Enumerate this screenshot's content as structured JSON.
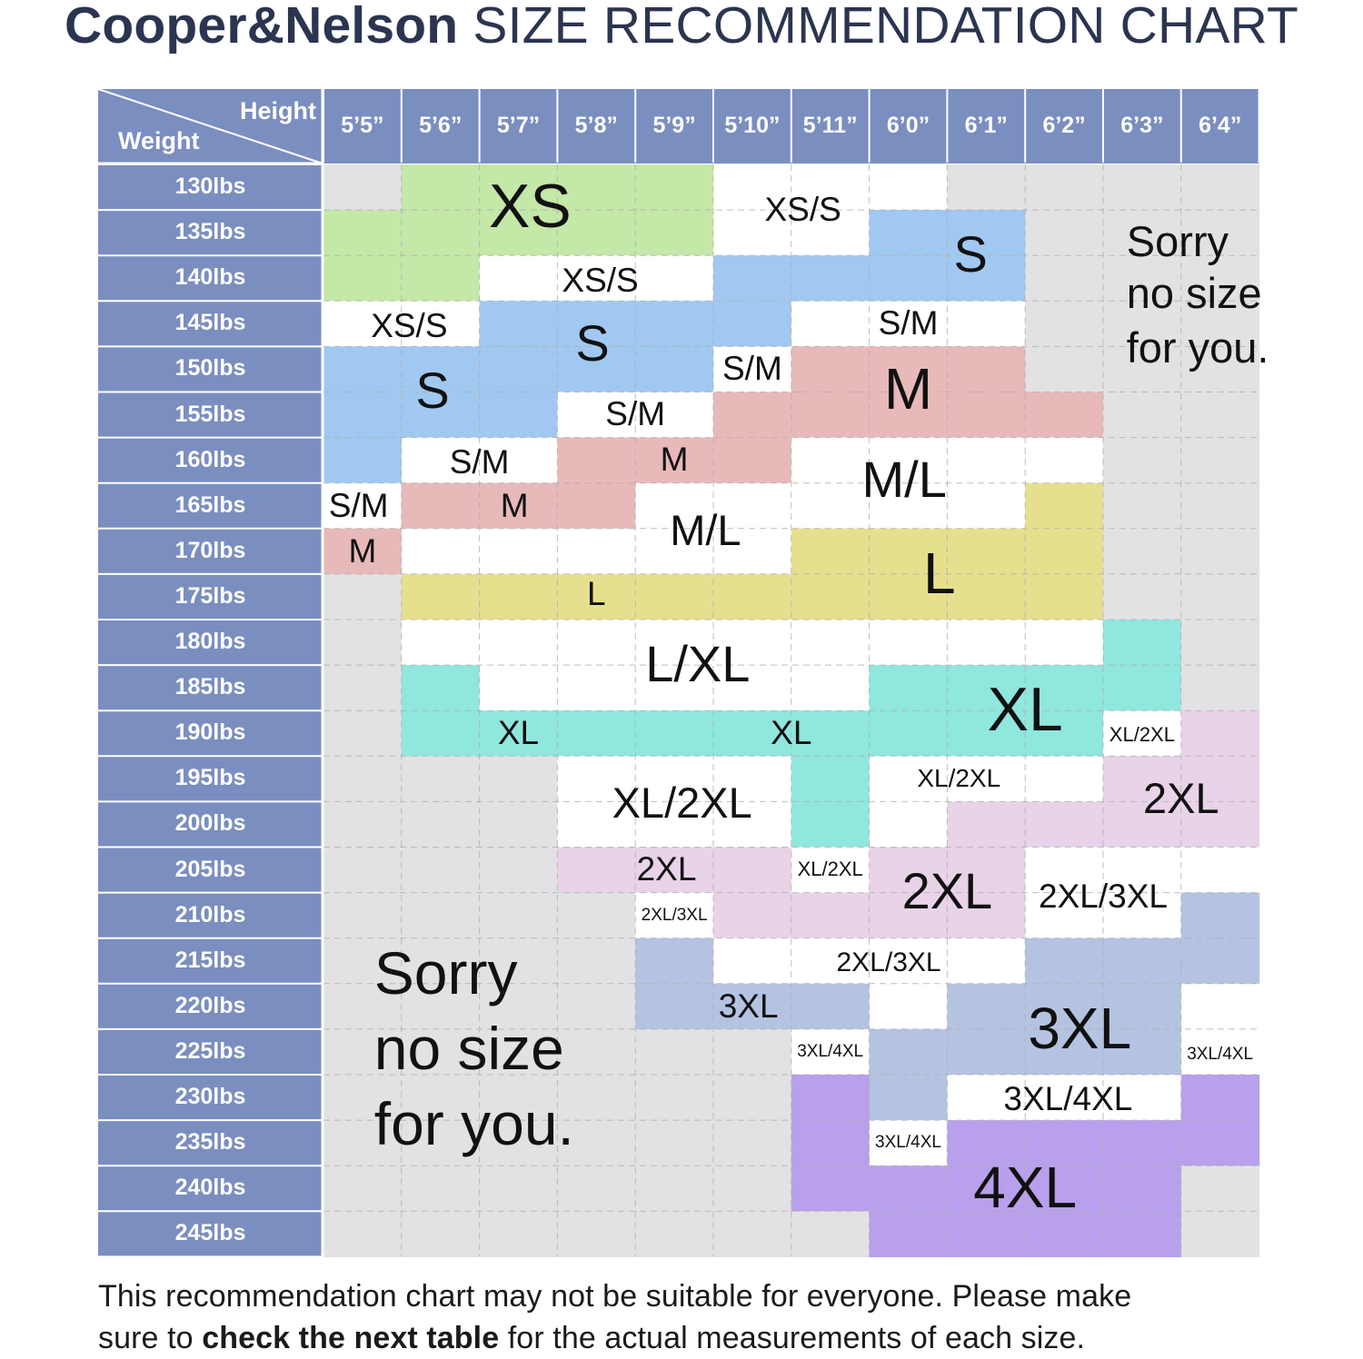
{
  "title": {
    "brand": "Cooper&Nelson",
    "text": "SIZE RECOMMENDATION CHART"
  },
  "footnote": {
    "line1": "This recommendation chart may not be suitable for everyone. Please make",
    "prefix": "sure to ",
    "bold": "check the next table",
    "suffix": " for the actual measurements of each size."
  },
  "chart_data": {
    "type": "table",
    "corner": {
      "column_label": "Height",
      "row_label": "Weight"
    },
    "columns": [
      "5’5”",
      "5’6”",
      "5’7”",
      "5’8”",
      "5’9”",
      "5’10”",
      "5’11”",
      "6’0”",
      "6’1”",
      "6’2”",
      "6’3”",
      "6’4”"
    ],
    "rows": [
      "130lbs",
      "135lbs",
      "140lbs",
      "145lbs",
      "150lbs",
      "155lbs",
      "160lbs",
      "165lbs",
      "170lbs",
      "175lbs",
      "180lbs",
      "185lbs",
      "190lbs",
      "195lbs",
      "200lbs",
      "205lbs",
      "210lbs",
      "215lbs",
      "220lbs",
      "225lbs",
      "230lbs",
      "235lbs",
      "240lbs",
      "245lbs"
    ],
    "colors": {
      "header": "#7b8ec0",
      "no_size": "#e2e2e4",
      "combo": "#ffffff",
      "XS": "#c3e8a7",
      "S": "#a1c8f1",
      "M": "#e8b9b9",
      "L": "#e6e08e",
      "XL": "#8fe7dd",
      "2XL": "#e8d3e8",
      "3XL": "#b5c3e2",
      "4XL": "#b8a0ec"
    },
    "grid": [
      [
        "none",
        "XS",
        "XS",
        "XS",
        "XS",
        "XS/S",
        "XS/S",
        "XS/S",
        "none",
        "none",
        "none",
        "none"
      ],
      [
        "XS",
        "XS",
        "XS",
        "XS",
        "XS",
        "XS/S",
        "XS/S",
        "S",
        "S",
        "none",
        "none",
        "none"
      ],
      [
        "XS",
        "XS",
        "XS/S",
        "XS/S",
        "XS/S",
        "S",
        "S",
        "S",
        "S",
        "none",
        "none",
        "none"
      ],
      [
        "XS/S",
        "XS/S",
        "S",
        "S",
        "S",
        "S",
        "S/M",
        "S/M",
        "S/M",
        "none",
        "none",
        "none"
      ],
      [
        "S",
        "S",
        "S",
        "S",
        "S",
        "S/M",
        "M",
        "M",
        "M",
        "none",
        "none",
        "none"
      ],
      [
        "S",
        "S",
        "S",
        "S/M",
        "S/M",
        "M",
        "M",
        "M",
        "M",
        "M",
        "none",
        "none"
      ],
      [
        "S",
        "S/M",
        "S/M",
        "M",
        "M",
        "M",
        "M/L",
        "M/L",
        "M/L",
        "M/L",
        "none",
        "none"
      ],
      [
        "S/M",
        "M",
        "M",
        "M",
        "M/L",
        "M/L",
        "M/L",
        "M/L",
        "M/L",
        "L",
        "none",
        "none"
      ],
      [
        "M",
        "M/L",
        "M/L",
        "M/L",
        "M/L",
        "M/L",
        "L",
        "L",
        "L",
        "L",
        "none",
        "none"
      ],
      [
        "none",
        "L",
        "L",
        "L",
        "L",
        "L",
        "L",
        "L",
        "L",
        "L",
        "none",
        "none"
      ],
      [
        "none",
        "L/XL",
        "L/XL",
        "L/XL",
        "L/XL",
        "L/XL",
        "L/XL",
        "L/XL",
        "L/XL",
        "L/XL",
        "XL",
        "none"
      ],
      [
        "none",
        "XL",
        "L/XL",
        "L/XL",
        "L/XL",
        "L/XL",
        "L/XL",
        "XL",
        "XL",
        "XL",
        "XL",
        "none"
      ],
      [
        "none",
        "XL",
        "XL",
        "XL",
        "XL",
        "XL",
        "XL",
        "XL",
        "XL",
        "XL",
        "XL/2XL",
        "2XL"
      ],
      [
        "none",
        "none",
        "none",
        "XL/2XL",
        "XL/2XL",
        "XL/2XL",
        "XL",
        "XL/2XL",
        "XL/2XL",
        "XL/2XL",
        "2XL",
        "2XL"
      ],
      [
        "none",
        "none",
        "none",
        "XL/2XL",
        "XL/2XL",
        "XL/2XL",
        "XL",
        "XL/2XL",
        "2XL",
        "2XL",
        "2XL",
        "2XL"
      ],
      [
        "none",
        "none",
        "none",
        "2XL",
        "2XL",
        "2XL",
        "XL/2XL",
        "2XL",
        "2XL",
        "2XL/3XL",
        "2XL/3XL",
        "2XL/3XL"
      ],
      [
        "none",
        "none",
        "none",
        "none",
        "2XL/3XL",
        "2XL",
        "2XL",
        "2XL",
        "2XL",
        "2XL/3XL",
        "2XL/3XL",
        "3XL"
      ],
      [
        "none",
        "none",
        "none",
        "none",
        "3XL",
        "2XL/3XL",
        "2XL/3XL",
        "2XL/3XL",
        "2XL/3XL",
        "3XL",
        "3XL",
        "3XL"
      ],
      [
        "none",
        "none",
        "none",
        "none",
        "3XL",
        "3XL",
        "3XL",
        "2XL/3XL",
        "3XL",
        "3XL",
        "3XL",
        "3XL/4XL"
      ],
      [
        "none",
        "none",
        "none",
        "none",
        "none",
        "none",
        "3XL/4XL",
        "3XL",
        "3XL",
        "3XL",
        "3XL",
        "3XL/4XL"
      ],
      [
        "none",
        "none",
        "none",
        "none",
        "none",
        "none",
        "4XL",
        "3XL",
        "3XL/4XL",
        "3XL/4XL",
        "3XL/4XL",
        "4XL"
      ],
      [
        "none",
        "none",
        "none",
        "none",
        "none",
        "none",
        "4XL",
        "3XL/4XL",
        "4XL",
        "4XL",
        "4XL",
        "4XL"
      ],
      [
        "none",
        "none",
        "none",
        "none",
        "none",
        "none",
        "4XL",
        "4XL",
        "4XL",
        "4XL",
        "4XL",
        "none"
      ],
      [
        "none",
        "none",
        "none",
        "none",
        "none",
        "none",
        "none",
        "4XL",
        "4XL",
        "4XL",
        "4XL",
        "none"
      ]
    ],
    "annotations": [
      {
        "text": "XS",
        "row": 0.95,
        "col": 2.65,
        "size": 68
      },
      {
        "text": "XS/S",
        "row": 1.0,
        "col": 6.15,
        "size": 37
      },
      {
        "text": "S",
        "row": 2.0,
        "col": 8.3,
        "size": 56
      },
      {
        "text": "Sorry",
        "row": 1.7,
        "col": 10.3,
        "size": 47,
        "align": "left"
      },
      {
        "text": "no size",
        "row": 2.85,
        "col": 10.3,
        "size": 47,
        "align": "left"
      },
      {
        "text": "for you.",
        "row": 4.05,
        "col": 10.3,
        "size": 47,
        "align": "left"
      },
      {
        "text": "XS/S",
        "row": 2.55,
        "col": 3.55,
        "size": 37
      },
      {
        "text": "XS/S",
        "row": 3.55,
        "col": 1.1,
        "size": 37
      },
      {
        "text": "S",
        "row": 3.95,
        "col": 3.45,
        "size": 56
      },
      {
        "text": "S/M",
        "row": 3.5,
        "col": 7.5,
        "size": 37
      },
      {
        "text": "S",
        "row": 5.0,
        "col": 1.4,
        "size": 56
      },
      {
        "text": "S/M",
        "row": 4.5,
        "col": 5.5,
        "size": 37
      },
      {
        "text": "M",
        "row": 4.95,
        "col": 7.5,
        "size": 64
      },
      {
        "text": "S/M",
        "row": 5.5,
        "col": 4.0,
        "size": 37
      },
      {
        "text": "S/M",
        "row": 6.55,
        "col": 2.0,
        "size": 37
      },
      {
        "text": "M",
        "row": 6.5,
        "col": 4.5,
        "size": 37
      },
      {
        "text": "M/L",
        "row": 6.95,
        "col": 7.45,
        "size": 56
      },
      {
        "text": "S/M",
        "row": 7.5,
        "col": 0.45,
        "size": 37
      },
      {
        "text": "M",
        "row": 7.5,
        "col": 2.45,
        "size": 37
      },
      {
        "text": "M/L",
        "row": 8.05,
        "col": 4.9,
        "size": 47
      },
      {
        "text": "M",
        "row": 8.5,
        "col": 0.5,
        "size": 37
      },
      {
        "text": "L",
        "row": 9.0,
        "col": 7.9,
        "size": 64
      },
      {
        "text": "L",
        "row": 9.45,
        "col": 3.5,
        "size": 37
      },
      {
        "text": "L/XL",
        "row": 11.0,
        "col": 4.8,
        "size": 56
      },
      {
        "text": "XL",
        "row": 12.0,
        "col": 9.0,
        "size": 68
      },
      {
        "text": "XL",
        "row": 12.5,
        "col": 2.5,
        "size": 37
      },
      {
        "text": "XL",
        "row": 12.5,
        "col": 6.0,
        "size": 37
      },
      {
        "text": "XL/2XL",
        "row": 12.55,
        "col": 10.5,
        "size": 22
      },
      {
        "text": "XL/2XL",
        "row": 14.05,
        "col": 4.6,
        "size": 47
      },
      {
        "text": "XL/2XL",
        "row": 13.5,
        "col": 8.15,
        "size": 28
      },
      {
        "text": "2XL",
        "row": 13.95,
        "col": 11.0,
        "size": 47
      },
      {
        "text": "2XL",
        "row": 15.5,
        "col": 4.4,
        "size": 37
      },
      {
        "text": "XL/2XL",
        "row": 15.5,
        "col": 6.5,
        "size": 22
      },
      {
        "text": "2XL",
        "row": 16.0,
        "col": 8.0,
        "size": 56
      },
      {
        "text": "2XL/3XL",
        "row": 16.1,
        "col": 10.0,
        "size": 37
      },
      {
        "text": "2XL/3XL",
        "row": 16.5,
        "col": 4.5,
        "size": 19
      },
      {
        "text": "Sorry",
        "row": 17.8,
        "col": 0.65,
        "size": 66,
        "align": "left"
      },
      {
        "text": "no size",
        "row": 19.45,
        "col": 0.65,
        "size": 66,
        "align": "left"
      },
      {
        "text": "for you.",
        "row": 21.1,
        "col": 0.65,
        "size": 66,
        "align": "left"
      },
      {
        "text": "2XL/3XL",
        "row": 17.55,
        "col": 7.25,
        "size": 30
      },
      {
        "text": "3XL",
        "row": 18.5,
        "col": 5.45,
        "size": 37
      },
      {
        "text": "3XL",
        "row": 19.0,
        "col": 9.7,
        "size": 64
      },
      {
        "text": "3XL/4XL",
        "row": 19.5,
        "col": 6.5,
        "size": 19
      },
      {
        "text": "3XL/4XL",
        "row": 19.55,
        "col": 11.5,
        "size": 19
      },
      {
        "text": "3XL/4XL",
        "row": 20.55,
        "col": 9.55,
        "size": 37
      },
      {
        "text": "3XL/4XL",
        "row": 21.5,
        "col": 7.5,
        "size": 19
      },
      {
        "text": "4XL",
        "row": 22.5,
        "col": 9.0,
        "size": 64
      }
    ]
  }
}
